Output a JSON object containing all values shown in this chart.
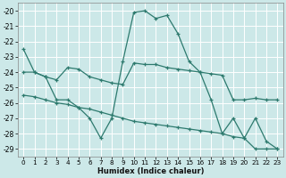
{
  "xlabel": "Humidex (Indice chaleur)",
  "bg_color": "#cce8e8",
  "grid_color": "#ffffff",
  "line_color": "#2d7a6e",
  "xlim": [
    -0.5,
    23.5
  ],
  "ylim_top": -19.5,
  "ylim_bottom": -29.5,
  "yticks": [
    -20,
    -21,
    -22,
    -23,
    -24,
    -25,
    -26,
    -27,
    -28,
    -29
  ],
  "xticks": [
    0,
    1,
    2,
    3,
    4,
    5,
    6,
    7,
    8,
    9,
    10,
    11,
    12,
    13,
    14,
    15,
    16,
    17,
    18,
    19,
    20,
    21,
    22,
    23
  ],
  "series": [
    {
      "x": [
        0,
        1,
        2,
        3,
        4,
        5,
        6,
        7,
        8,
        9,
        10,
        11,
        12,
        13,
        14,
        15,
        16,
        17,
        18,
        19,
        20,
        21,
        22,
        23
      ],
      "y": [
        -22.5,
        -24.0,
        -24.3,
        -25.8,
        -25.8,
        -26.3,
        -27.0,
        -28.3,
        -27.0,
        -23.3,
        -20.1,
        -20.0,
        -20.5,
        -20.3,
        -21.5,
        -23.3,
        -24.0,
        -25.8,
        -28.0,
        -27.0,
        -28.3,
        -29.0,
        -29.0,
        -29.0
      ]
    },
    {
      "x": [
        0,
        1,
        2,
        3,
        4,
        5,
        6,
        7,
        8,
        9,
        10,
        11,
        12,
        13,
        14,
        15,
        16,
        17,
        18,
        19,
        20,
        21,
        22,
        23
      ],
      "y": [
        -24.0,
        -24.0,
        -24.3,
        -24.5,
        -23.7,
        -23.8,
        -24.3,
        -24.5,
        -24.7,
        -24.8,
        -23.4,
        -23.5,
        -23.5,
        -23.7,
        -23.8,
        -23.9,
        -24.0,
        -24.1,
        -24.2,
        -25.8,
        -25.8,
        -25.7,
        -25.8,
        -25.8
      ]
    },
    {
      "x": [
        0,
        1,
        2,
        3,
        4,
        5,
        6,
        7,
        8,
        9,
        10,
        11,
        12,
        13,
        14,
        15,
        16,
        17,
        18,
        19,
        20,
        21,
        22,
        23
      ],
      "y": [
        -25.5,
        -25.6,
        -25.8,
        -26.0,
        -26.1,
        -26.3,
        -26.4,
        -26.6,
        -26.8,
        -27.0,
        -27.2,
        -27.3,
        -27.4,
        -27.5,
        -27.6,
        -27.7,
        -27.8,
        -27.9,
        -28.0,
        -28.2,
        -28.3,
        -27.0,
        -28.5,
        -29.0
      ]
    }
  ]
}
